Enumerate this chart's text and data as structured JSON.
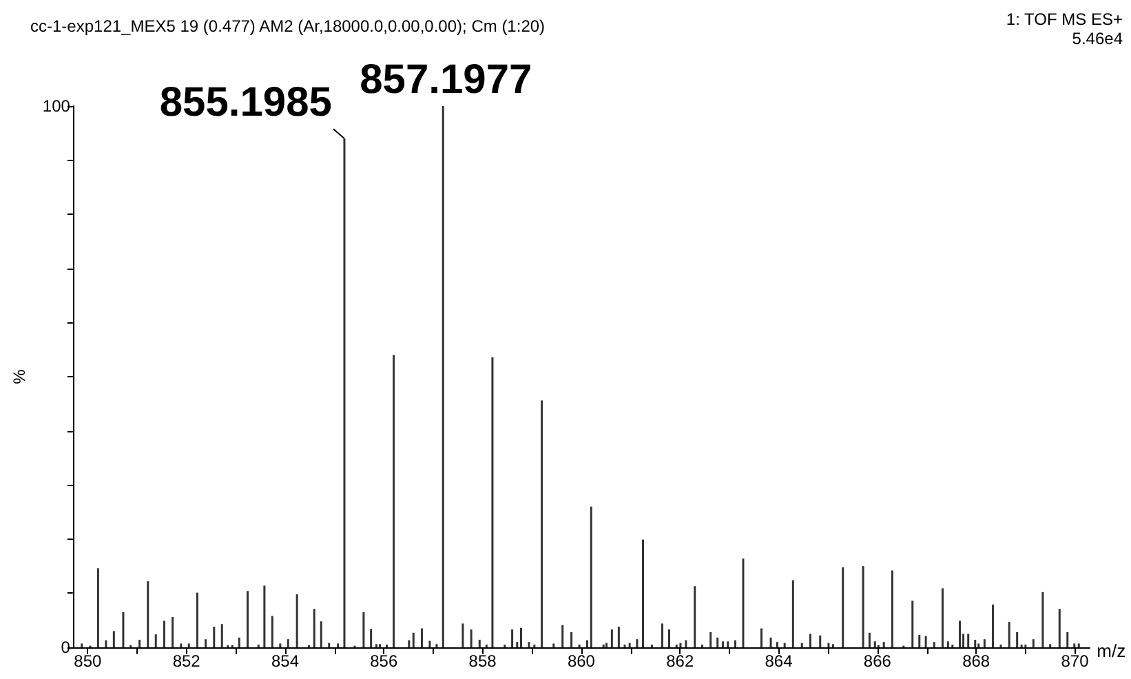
{
  "chart_data": {
    "type": "bar",
    "title": "cc-1-exp121_MEX5 19 (0.477) AM2 (Ar,18000.0,0.00,0.00); Cm (1:20)",
    "xlabel": "m/z",
    "ylabel": "%",
    "annotations": [
      "1: TOF MS ES+",
      "5.46e4",
      {
        "text": "855.1985",
        "x": 855.2,
        "y": 94
      },
      {
        "text": "857.1977",
        "x": 857.2,
        "y": 100
      }
    ],
    "x": [
      849.88,
      850.05,
      850.21,
      850.37,
      850.53,
      850.72,
      850.87,
      851.05,
      851.22,
      851.38,
      851.55,
      851.72,
      851.89,
      852.05,
      852.22,
      852.39,
      852.56,
      852.72,
      852.84,
      852.93,
      853.07,
      853.24,
      853.46,
      853.58,
      853.74,
      853.9,
      854.06,
      854.24,
      854.48,
      854.59,
      854.73,
      854.89,
      855.07,
      855.2,
      855.41,
      855.59,
      855.74,
      855.85,
      855.92,
      856.06,
      856.2,
      856.51,
      856.6,
      856.77,
      856.93,
      857.07,
      857.2,
      857.6,
      857.77,
      857.94,
      858.08,
      858.2,
      858.45,
      858.6,
      858.7,
      858.78,
      858.94,
      859.05,
      859.2,
      859.44,
      859.62,
      859.8,
      859.96,
      860.12,
      860.2,
      860.45,
      860.51,
      860.62,
      860.76,
      860.88,
      860.98,
      861.13,
      861.25,
      861.43,
      861.64,
      861.78,
      861.93,
      862.01,
      862.12,
      862.3,
      862.45,
      862.62,
      862.76,
      862.87,
      862.97,
      863.12,
      863.28,
      863.65,
      863.84,
      863.97,
      864.12,
      864.29,
      864.47,
      864.64,
      864.84,
      865.01,
      865.1,
      865.3,
      865.71,
      865.84,
      865.95,
      866.02,
      866.13,
      866.3,
      866.53,
      866.71,
      866.85,
      866.98,
      867.15,
      867.32,
      867.43,
      867.52,
      867.67,
      867.74,
      867.84,
      867.98,
      868.05,
      868.17,
      868.34,
      868.5,
      868.67,
      868.83,
      868.92,
      869.0,
      869.16,
      869.35,
      869.5,
      869.69,
      869.85,
      869.99,
      870.08
    ],
    "values": [
      0.7,
      0.3,
      14.6,
      1.3,
      3.0,
      6.5,
      0.4,
      1.4,
      12.2,
      2.4,
      4.9,
      5.6,
      0.7,
      0.7,
      10.1,
      1.5,
      3.8,
      4.3,
      0.4,
      0.4,
      1.8,
      10.4,
      0.5,
      11.4,
      5.8,
      0.7,
      1.5,
      9.8,
      0.4,
      7.1,
      4.8,
      0.8,
      0.7,
      94,
      0.3,
      6.5,
      3.4,
      0.6,
      0.6,
      0.5,
      54,
      1.3,
      2.7,
      3.5,
      1.2,
      0.6,
      100,
      4.4,
      3.3,
      1.4,
      0.5,
      53.6,
      0.5,
      3.3,
      1.0,
      3.6,
      1.0,
      0.5,
      45.6,
      0.7,
      4.1,
      2.8,
      0.5,
      1.3,
      26,
      0.5,
      0.8,
      3.3,
      3.8,
      0.5,
      0.8,
      1.5,
      19.9,
      0.5,
      4.4,
      3.3,
      0.5,
      0.8,
      1.3,
      11.3,
      0.5,
      2.8,
      1.8,
      1.1,
      1.1,
      1.3,
      16.4,
      3.5,
      1.8,
      1.0,
      0.8,
      12.4,
      0.8,
      2.5,
      2.2,
      0.8,
      0.6,
      14.8,
      15.0,
      2.7,
      1.1,
      0.4,
      1.0,
      14.2,
      0.3,
      8.6,
      2.3,
      2.1,
      1.0,
      10.9,
      1.1,
      0.5,
      4.9,
      2.5,
      2.5,
      1.4,
      0.7,
      1.5,
      7.9,
      0.5,
      4.7,
      2.8,
      0.5,
      0.5,
      1.5,
      10.2,
      0.6,
      7.1,
      2.8,
      0.7,
      0.7
    ],
    "color": "#333333",
    "xlim": [
      849.7,
      870.3
    ],
    "xticks": [
      850,
      {
        "value": 851,
        "label": null
      },
      852,
      {
        "value": 853,
        "label": null
      },
      854,
      {
        "value": 855,
        "label": null
      },
      856,
      {
        "value": 857,
        "label": null
      },
      858,
      {
        "value": 859,
        "label": null
      },
      860,
      {
        "value": 861,
        "label": null
      },
      862,
      {
        "value": 863,
        "label": null
      },
      864,
      {
        "value": 865,
        "label": null
      },
      866,
      {
        "value": 867,
        "label": null
      },
      868,
      {
        "value": 869,
        "label": null
      },
      870
    ],
    "ylim": [
      0,
      100
    ],
    "yticks": [
      0,
      {
        "value": 10,
        "label": null
      },
      {
        "value": 20,
        "label": null
      },
      {
        "value": 30,
        "label": null
      },
      {
        "value": 40,
        "label": null
      },
      {
        "value": 50,
        "label": null
      },
      {
        "value": 60,
        "label": null
      },
      {
        "value": 70,
        "label": null
      },
      {
        "value": 80,
        "label": null
      },
      {
        "value": 90,
        "label": null
      },
      100
    ],
    "grid": false
  }
}
